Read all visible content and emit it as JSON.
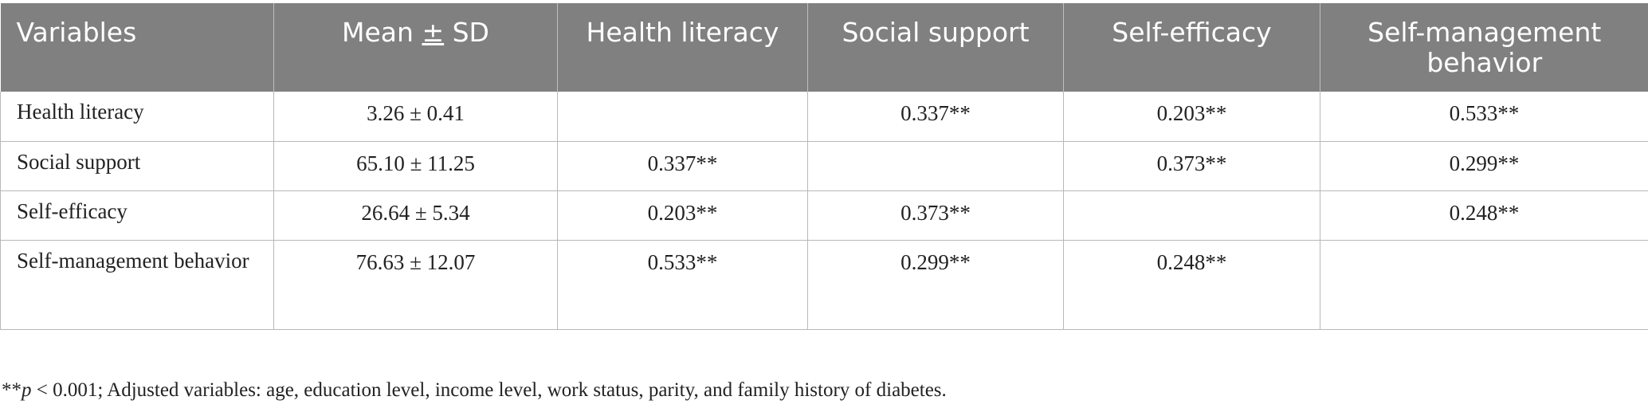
{
  "table": {
    "headers": {
      "variables": "Variables",
      "mean_pre": "Mean ",
      "mean_pm": "±",
      "mean_post": " SD",
      "health_literacy": "Health literacy",
      "social_support": "Social support",
      "self_efficacy": "Self-efficacy",
      "self_management": "Self-management behavior"
    },
    "rows": [
      {
        "label": "Health literacy",
        "mean_sd": "3.26 ± 0.41",
        "health_literacy": "",
        "social_support": "0.337**",
        "self_efficacy": "0.203**",
        "self_management": "0.533**"
      },
      {
        "label": "Social support",
        "mean_sd": "65.10 ± 11.25",
        "health_literacy": "0.337**",
        "social_support": "",
        "self_efficacy": "0.373**",
        "self_management": "0.299**"
      },
      {
        "label": "Self-efficacy",
        "mean_sd": "26.64 ± 5.34",
        "health_literacy": "0.203**",
        "social_support": "0.373**",
        "self_efficacy": "",
        "self_management": "0.248**"
      },
      {
        "label": "Self-management behavior",
        "mean_sd": "76.63 ± 12.07",
        "health_literacy": "0.533**",
        "social_support": "0.299**",
        "self_efficacy": "0.248**",
        "self_management": ""
      }
    ]
  },
  "footnote": {
    "stars": "**",
    "p_symbol": "p",
    "rest": " < 0.001; Adjusted variables: age, education level, income level, work status, parity, and family history of diabetes."
  }
}
